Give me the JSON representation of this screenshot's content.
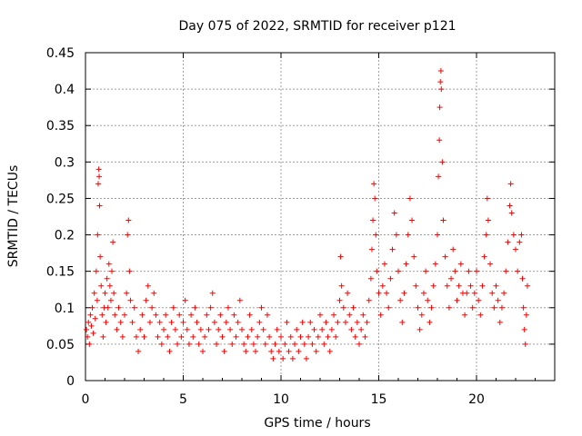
{
  "chart_data": {
    "type": "scatter",
    "title": "Day 075 of 2022, SRMTID for receiver p121",
    "xlabel": "GPS time / hours",
    "ylabel": "SRMTID / TECUs",
    "xlim": [
      0,
      24
    ],
    "ylim": [
      0,
      0.45
    ],
    "x_ticks": [
      0,
      5,
      10,
      15,
      20
    ],
    "x_tick_labels": [
      "0",
      "5",
      "10",
      "15",
      "20"
    ],
    "y_ticks": [
      0,
      0.05,
      0.1,
      0.15,
      0.2,
      0.25,
      0.3,
      0.35,
      0.4,
      0.45
    ],
    "y_tick_labels": [
      "0",
      "0.05",
      "0.1",
      "0.15",
      "0.2",
      "0.25",
      "0.3",
      "0.35",
      "0.4",
      "0.45"
    ],
    "grid": true,
    "marker": "+",
    "series": [
      {
        "name": "SRMTID",
        "color": "#ff0000",
        "points": [
          [
            0.05,
            0.07
          ],
          [
            0.1,
            0.06
          ],
          [
            0.15,
            0.08
          ],
          [
            0.2,
            0.05
          ],
          [
            0.25,
            0.09
          ],
          [
            0.3,
            0.075
          ],
          [
            0.35,
            0.1
          ],
          [
            0.4,
            0.065
          ],
          [
            0.45,
            0.12
          ],
          [
            0.5,
            0.085
          ],
          [
            0.55,
            0.15
          ],
          [
            0.6,
            0.11
          ],
          [
            0.62,
            0.2
          ],
          [
            0.65,
            0.27
          ],
          [
            0.68,
            0.29
          ],
          [
            0.7,
            0.28
          ],
          [
            0.72,
            0.24
          ],
          [
            0.75,
            0.17
          ],
          [
            0.8,
            0.13
          ],
          [
            0.85,
            0.09
          ],
          [
            0.9,
            0.06
          ],
          [
            0.95,
            0.1
          ],
          [
            1.0,
            0.12
          ],
          [
            1.05,
            0.08
          ],
          [
            1.1,
            0.14
          ],
          [
            1.15,
            0.1
          ],
          [
            1.2,
            0.16
          ],
          [
            1.25,
            0.13
          ],
          [
            1.3,
            0.11
          ],
          [
            1.35,
            0.15
          ],
          [
            1.4,
            0.19
          ],
          [
            1.45,
            0.12
          ],
          [
            1.5,
            0.09
          ],
          [
            1.6,
            0.07
          ],
          [
            1.7,
            0.1
          ],
          [
            1.8,
            0.08
          ],
          [
            1.9,
            0.06
          ],
          [
            2.0,
            0.09
          ],
          [
            2.1,
            0.12
          ],
          [
            2.15,
            0.2
          ],
          [
            2.2,
            0.22
          ],
          [
            2.25,
            0.15
          ],
          [
            2.3,
            0.11
          ],
          [
            2.4,
            0.08
          ],
          [
            2.5,
            0.1
          ],
          [
            2.6,
            0.06
          ],
          [
            2.7,
            0.04
          ],
          [
            2.8,
            0.07
          ],
          [
            2.9,
            0.09
          ],
          [
            3.0,
            0.06
          ],
          [
            3.1,
            0.11
          ],
          [
            3.2,
            0.13
          ],
          [
            3.3,
            0.08
          ],
          [
            3.4,
            0.1
          ],
          [
            3.5,
            0.12
          ],
          [
            3.6,
            0.09
          ],
          [
            3.7,
            0.06
          ],
          [
            3.8,
            0.08
          ],
          [
            3.9,
            0.05
          ],
          [
            4.0,
            0.07
          ],
          [
            4.1,
            0.09
          ],
          [
            4.2,
            0.06
          ],
          [
            4.3,
            0.04
          ],
          [
            4.4,
            0.08
          ],
          [
            4.5,
            0.1
          ],
          [
            4.6,
            0.07
          ],
          [
            4.7,
            0.05
          ],
          [
            4.8,
            0.09
          ],
          [
            4.9,
            0.06
          ],
          [
            5.0,
            0.08
          ],
          [
            5.1,
            0.11
          ],
          [
            5.2,
            0.07
          ],
          [
            5.3,
            0.05
          ],
          [
            5.4,
            0.09
          ],
          [
            5.5,
            0.06
          ],
          [
            5.6,
            0.1
          ],
          [
            5.7,
            0.08
          ],
          [
            5.8,
            0.05
          ],
          [
            5.9,
            0.07
          ],
          [
            6.0,
            0.04
          ],
          [
            6.1,
            0.06
          ],
          [
            6.2,
            0.09
          ],
          [
            6.3,
            0.07
          ],
          [
            6.4,
            0.1
          ],
          [
            6.5,
            0.12
          ],
          [
            6.6,
            0.08
          ],
          [
            6.7,
            0.05
          ],
          [
            6.8,
            0.07
          ],
          [
            6.9,
            0.09
          ],
          [
            7.0,
            0.06
          ],
          [
            7.1,
            0.04
          ],
          [
            7.2,
            0.08
          ],
          [
            7.3,
            0.1
          ],
          [
            7.4,
            0.07
          ],
          [
            7.5,
            0.05
          ],
          [
            7.6,
            0.09
          ],
          [
            7.7,
            0.06
          ],
          [
            7.8,
            0.08
          ],
          [
            7.9,
            0.11
          ],
          [
            8.0,
            0.07
          ],
          [
            8.1,
            0.05
          ],
          [
            8.2,
            0.04
          ],
          [
            8.3,
            0.06
          ],
          [
            8.4,
            0.09
          ],
          [
            8.5,
            0.07
          ],
          [
            8.6,
            0.05
          ],
          [
            8.7,
            0.04
          ],
          [
            8.8,
            0.06
          ],
          [
            8.9,
            0.08
          ],
          [
            9.0,
            0.1
          ],
          [
            9.1,
            0.07
          ],
          [
            9.2,
            0.05
          ],
          [
            9.3,
            0.09
          ],
          [
            9.4,
            0.06
          ],
          [
            9.5,
            0.04
          ],
          [
            9.6,
            0.03
          ],
          [
            9.7,
            0.05
          ],
          [
            9.8,
            0.07
          ],
          [
            9.9,
            0.04
          ],
          [
            10.0,
            0.06
          ],
          [
            10.1,
            0.03
          ],
          [
            10.2,
            0.05
          ],
          [
            10.3,
            0.08
          ],
          [
            10.4,
            0.04
          ],
          [
            10.5,
            0.06
          ],
          [
            10.6,
            0.03
          ],
          [
            10.7,
            0.05
          ],
          [
            10.8,
            0.07
          ],
          [
            10.9,
            0.04
          ],
          [
            11.0,
            0.06
          ],
          [
            11.1,
            0.08
          ],
          [
            11.2,
            0.05
          ],
          [
            11.3,
            0.03
          ],
          [
            11.4,
            0.06
          ],
          [
            11.5,
            0.08
          ],
          [
            11.6,
            0.05
          ],
          [
            11.7,
            0.07
          ],
          [
            11.8,
            0.04
          ],
          [
            11.9,
            0.06
          ],
          [
            12.0,
            0.09
          ],
          [
            12.1,
            0.07
          ],
          [
            12.2,
            0.05
          ],
          [
            12.3,
            0.08
          ],
          [
            12.4,
            0.06
          ],
          [
            12.5,
            0.04
          ],
          [
            12.6,
            0.07
          ],
          [
            12.7,
            0.09
          ],
          [
            12.8,
            0.06
          ],
          [
            12.9,
            0.08
          ],
          [
            13.0,
            0.11
          ],
          [
            13.05,
            0.17
          ],
          [
            13.1,
            0.13
          ],
          [
            13.2,
            0.1
          ],
          [
            13.3,
            0.08
          ],
          [
            13.4,
            0.12
          ],
          [
            13.5,
            0.09
          ],
          [
            13.6,
            0.07
          ],
          [
            13.7,
            0.1
          ],
          [
            13.8,
            0.06
          ],
          [
            13.9,
            0.08
          ],
          [
            14.0,
            0.05
          ],
          [
            14.1,
            0.07
          ],
          [
            14.2,
            0.09
          ],
          [
            14.3,
            0.06
          ],
          [
            14.4,
            0.08
          ],
          [
            14.5,
            0.11
          ],
          [
            14.6,
            0.14
          ],
          [
            14.65,
            0.18
          ],
          [
            14.7,
            0.22
          ],
          [
            14.75,
            0.27
          ],
          [
            14.8,
            0.25
          ],
          [
            14.85,
            0.2
          ],
          [
            14.9,
            0.15
          ],
          [
            15.0,
            0.12
          ],
          [
            15.1,
            0.09
          ],
          [
            15.2,
            0.13
          ],
          [
            15.3,
            0.16
          ],
          [
            15.4,
            0.12
          ],
          [
            15.5,
            0.1
          ],
          [
            15.6,
            0.14
          ],
          [
            15.7,
            0.18
          ],
          [
            15.8,
            0.23
          ],
          [
            15.9,
            0.2
          ],
          [
            16.0,
            0.15
          ],
          [
            16.1,
            0.11
          ],
          [
            16.2,
            0.08
          ],
          [
            16.3,
            0.12
          ],
          [
            16.4,
            0.16
          ],
          [
            16.5,
            0.2
          ],
          [
            16.6,
            0.25
          ],
          [
            16.7,
            0.22
          ],
          [
            16.8,
            0.17
          ],
          [
            16.9,
            0.13
          ],
          [
            17.0,
            0.1
          ],
          [
            17.1,
            0.07
          ],
          [
            17.2,
            0.09
          ],
          [
            17.3,
            0.12
          ],
          [
            17.4,
            0.15
          ],
          [
            17.5,
            0.11
          ],
          [
            17.6,
            0.08
          ],
          [
            17.7,
            0.1
          ],
          [
            17.8,
            0.13
          ],
          [
            17.9,
            0.16
          ],
          [
            18.0,
            0.2
          ],
          [
            18.05,
            0.28
          ],
          [
            18.1,
            0.33
          ],
          [
            18.12,
            0.375
          ],
          [
            18.15,
            0.41
          ],
          [
            18.18,
            0.425
          ],
          [
            18.2,
            0.4
          ],
          [
            18.25,
            0.3
          ],
          [
            18.3,
            0.22
          ],
          [
            18.4,
            0.17
          ],
          [
            18.5,
            0.13
          ],
          [
            18.6,
            0.1
          ],
          [
            18.7,
            0.14
          ],
          [
            18.8,
            0.18
          ],
          [
            18.9,
            0.15
          ],
          [
            19.0,
            0.11
          ],
          [
            19.1,
            0.13
          ],
          [
            19.2,
            0.16
          ],
          [
            19.3,
            0.12
          ],
          [
            19.4,
            0.09
          ],
          [
            19.5,
            0.12
          ],
          [
            19.6,
            0.15
          ],
          [
            19.7,
            0.13
          ],
          [
            19.8,
            0.1
          ],
          [
            19.9,
            0.12
          ],
          [
            20.0,
            0.15
          ],
          [
            20.1,
            0.11
          ],
          [
            20.2,
            0.09
          ],
          [
            20.3,
            0.13
          ],
          [
            20.4,
            0.17
          ],
          [
            20.5,
            0.2
          ],
          [
            20.55,
            0.25
          ],
          [
            20.6,
            0.22
          ],
          [
            20.7,
            0.16
          ],
          [
            20.8,
            0.12
          ],
          [
            20.9,
            0.1
          ],
          [
            21.0,
            0.13
          ],
          [
            21.1,
            0.11
          ],
          [
            21.2,
            0.08
          ],
          [
            21.3,
            0.1
          ],
          [
            21.4,
            0.12
          ],
          [
            21.5,
            0.15
          ],
          [
            21.6,
            0.19
          ],
          [
            21.7,
            0.24
          ],
          [
            21.75,
            0.27
          ],
          [
            21.8,
            0.23
          ],
          [
            21.9,
            0.2
          ],
          [
            22.0,
            0.18
          ],
          [
            22.1,
            0.15
          ],
          [
            22.2,
            0.19
          ],
          [
            22.3,
            0.2
          ],
          [
            22.35,
            0.14
          ],
          [
            22.4,
            0.1
          ],
          [
            22.45,
            0.07
          ],
          [
            22.5,
            0.05
          ],
          [
            22.55,
            0.09
          ],
          [
            22.6,
            0.13
          ]
        ]
      }
    ]
  }
}
